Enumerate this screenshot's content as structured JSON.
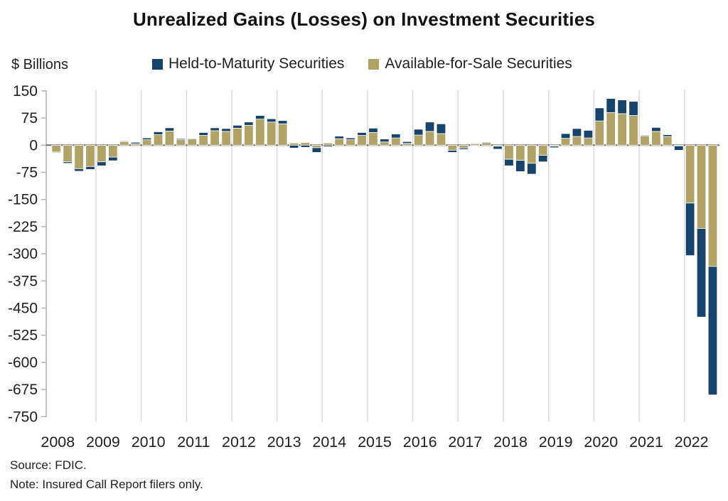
{
  "title": "Unrealized Gains (Losses) on Investment Securities",
  "y_axis_unit": "$ Billions",
  "legend": [
    {
      "key": "htm",
      "label": "Held-to-Maturity Securities",
      "color": "#17436a"
    },
    {
      "key": "afs",
      "label": "Available-for-Sale Securities",
      "color": "#b1a268"
    }
  ],
  "source": "Source: FDIC.",
  "note": "Note: Insured Call Report filers only.",
  "chart_data": {
    "type": "bar",
    "stacked": true,
    "unit": "$ billions",
    "title": "Unrealized Gains (Losses) on Investment Securities",
    "ylabel": "$ Billions",
    "ylim": [
      -750,
      150
    ],
    "yticks": [
      150,
      75,
      0,
      -75,
      -150,
      -225,
      -300,
      -375,
      -450,
      -525,
      -600,
      -675,
      -750
    ],
    "x_tick_labels": [
      "2008",
      "2009",
      "2010",
      "2011",
      "2012",
      "2013",
      "2014",
      "2015",
      "2016",
      "2017",
      "2018",
      "2019",
      "2020",
      "2021",
      "2022"
    ],
    "grid": "vertical-year-lines",
    "legend_position": "top",
    "stack_order_from_zero": [
      "afs",
      "htm"
    ],
    "colors": {
      "htm": "#17436a",
      "afs": "#b1a268"
    },
    "quarters": [
      {
        "period": "2008Q1",
        "afs": -19,
        "htm": -1
      },
      {
        "period": "2008Q2",
        "afs": -46,
        "htm": -4
      },
      {
        "period": "2008Q3",
        "afs": -65,
        "htm": -7
      },
      {
        "period": "2008Q4",
        "afs": -59,
        "htm": -8
      },
      {
        "period": "2009Q1",
        "afs": -46,
        "htm": -11
      },
      {
        "period": "2009Q2",
        "afs": -33,
        "htm": -10
      },
      {
        "period": "2009Q3",
        "afs": 10,
        "htm": 2
      },
      {
        "period": "2009Q4",
        "afs": 4,
        "htm": 4
      },
      {
        "period": "2010Q1",
        "afs": 15,
        "htm": 5
      },
      {
        "period": "2010Q2",
        "afs": 29,
        "htm": 8
      },
      {
        "period": "2010Q3",
        "afs": 39,
        "htm": 9
      },
      {
        "period": "2010Q4",
        "afs": 15,
        "htm": 3
      },
      {
        "period": "2011Q1",
        "afs": 17,
        "htm": 2
      },
      {
        "period": "2011Q2",
        "afs": 27,
        "htm": 8
      },
      {
        "period": "2011Q3",
        "afs": 40,
        "htm": 8
      },
      {
        "period": "2011Q4",
        "afs": 38,
        "htm": 8
      },
      {
        "period": "2012Q1",
        "afs": 47,
        "htm": 8
      },
      {
        "period": "2012Q2",
        "afs": 55,
        "htm": 9
      },
      {
        "period": "2012Q3",
        "afs": 72,
        "htm": 10
      },
      {
        "period": "2012Q4",
        "afs": 64,
        "htm": 9
      },
      {
        "period": "2013Q1",
        "afs": 59,
        "htm": 9
      },
      {
        "period": "2013Q2",
        "afs": 6,
        "htm": -8
      },
      {
        "period": "2013Q3",
        "afs": 7,
        "htm": -6
      },
      {
        "period": "2013Q4",
        "afs": -7,
        "htm": -13
      },
      {
        "period": "2014Q1",
        "afs": 6,
        "htm": -4
      },
      {
        "period": "2014Q2",
        "afs": 18,
        "htm": 7
      },
      {
        "period": "2014Q3",
        "afs": 15,
        "htm": 5
      },
      {
        "period": "2014Q4",
        "afs": 27,
        "htm": 8
      },
      {
        "period": "2015Q1",
        "afs": 35,
        "htm": 12
      },
      {
        "period": "2015Q2",
        "afs": 9,
        "htm": 8
      },
      {
        "period": "2015Q3",
        "afs": 20,
        "htm": 11
      },
      {
        "period": "2015Q4",
        "afs": 5,
        "htm": 5
      },
      {
        "period": "2016Q1",
        "afs": 28,
        "htm": 16
      },
      {
        "period": "2016Q2",
        "afs": 38,
        "htm": 26
      },
      {
        "period": "2016Q3",
        "afs": 32,
        "htm": 27
      },
      {
        "period": "2016Q4",
        "afs": -14,
        "htm": -6
      },
      {
        "period": "2017Q1",
        "afs": -8,
        "htm": -4
      },
      {
        "period": "2017Q2",
        "afs": 4,
        "htm": -1
      },
      {
        "period": "2017Q3",
        "afs": 7,
        "htm": 2
      },
      {
        "period": "2017Q4",
        "afs": -3,
        "htm": -8
      },
      {
        "period": "2018Q1",
        "afs": -39,
        "htm": -18
      },
      {
        "period": "2018Q2",
        "afs": -42,
        "htm": -31
      },
      {
        "period": "2018Q3",
        "afs": -50,
        "htm": -30
      },
      {
        "period": "2018Q4",
        "afs": -28,
        "htm": -18
      },
      {
        "period": "2019Q1",
        "afs": -3,
        "htm": -4
      },
      {
        "period": "2019Q2",
        "afs": 19,
        "htm": 13
      },
      {
        "period": "2019Q3",
        "afs": 24,
        "htm": 22
      },
      {
        "period": "2019Q4",
        "afs": 20,
        "htm": 21
      },
      {
        "period": "2020Q1",
        "afs": 67,
        "htm": 36
      },
      {
        "period": "2020Q2",
        "afs": 90,
        "htm": 39
      },
      {
        "period": "2020Q3",
        "afs": 87,
        "htm": 38
      },
      {
        "period": "2020Q4",
        "afs": 82,
        "htm": 39
      },
      {
        "period": "2021Q1",
        "afs": 26,
        "htm": 2
      },
      {
        "period": "2021Q2",
        "afs": 38,
        "htm": 11
      },
      {
        "period": "2021Q3",
        "afs": 24,
        "htm": 5
      },
      {
        "period": "2021Q4",
        "afs": -2,
        "htm": -12
      },
      {
        "period": "2022Q1",
        "afs": -160,
        "htm": -145
      },
      {
        "period": "2022Q2",
        "afs": -230,
        "htm": -245
      },
      {
        "period": "2022Q3",
        "afs": -335,
        "htm": -355
      }
    ]
  }
}
